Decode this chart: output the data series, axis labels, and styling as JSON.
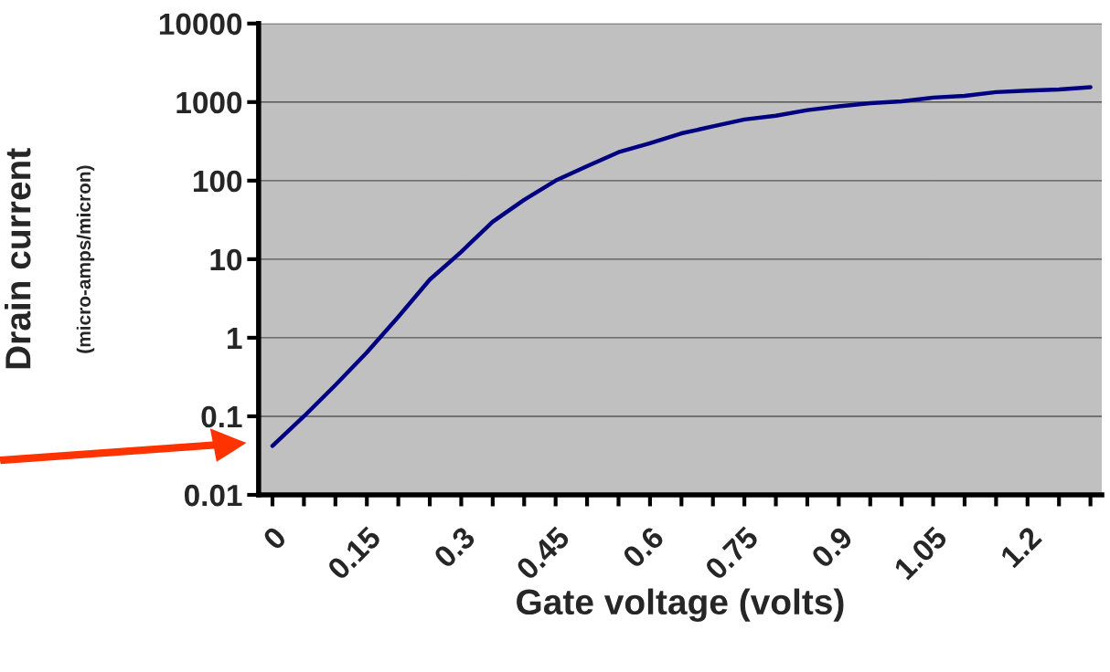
{
  "chart_data": {
    "type": "line",
    "xlabel": "Gate voltage (volts)",
    "ylabel": "Drain current",
    "annotations": [
      "(micro-amps/micron)"
    ],
    "x": [
      0,
      0.05,
      0.1,
      0.15,
      0.2,
      0.25,
      0.3,
      0.35,
      0.4,
      0.45,
      0.5,
      0.55,
      0.6,
      0.65,
      0.7,
      0.75,
      0.8,
      0.85,
      0.9,
      0.95,
      1.0,
      1.05,
      1.1,
      1.15,
      1.2,
      1.25,
      1.3
    ],
    "series": [
      {
        "color": "#000080",
        "values": [
          0.042,
          0.1,
          0.25,
          0.65,
          1.85,
          5.5,
          12.4,
          30,
          57,
          100,
          153,
          230,
          300,
          400,
          490,
          600,
          670,
          790,
          880,
          970,
          1020,
          1140,
          1200,
          1340,
          1400,
          1450,
          1550
        ]
      }
    ],
    "log": "y",
    "ylim": [
      0.01,
      10000
    ],
    "yticks": [
      0.01,
      0.1,
      1,
      10,
      100,
      1000,
      10000
    ],
    "xlim": [
      -0.022,
      1.318
    ],
    "xticks": [
      0,
      {
        "value": 0.05,
        "label": null
      },
      {
        "value": 0.1,
        "label": null
      },
      0.15,
      {
        "value": 0.2,
        "label": null
      },
      {
        "value": 0.25,
        "label": null
      },
      0.3,
      {
        "value": 0.35,
        "label": null
      },
      {
        "value": 0.4,
        "label": null
      },
      0.45,
      {
        "value": 0.5,
        "label": null
      },
      {
        "value": 0.55,
        "label": null
      },
      0.6,
      {
        "value": 0.65,
        "label": null
      },
      {
        "value": 0.7,
        "label": null
      },
      0.75,
      {
        "value": 0.8,
        "label": null
      },
      {
        "value": 0.85,
        "label": null
      },
      0.9,
      {
        "value": 0.95,
        "label": null
      },
      {
        "value": 1.0,
        "label": null
      },
      1.05,
      {
        "value": 1.1,
        "label": null
      },
      {
        "value": 1.15,
        "label": null
      },
      1.2,
      {
        "value": 1.25,
        "label": null
      },
      {
        "value": 1.3,
        "label": null
      }
    ],
    "grid": "y",
    "marker": "none",
    "line_style": "solid",
    "legend": false
  }
}
